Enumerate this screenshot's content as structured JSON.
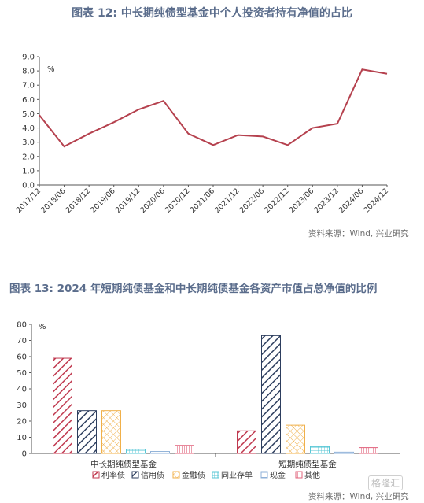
{
  "figure1": {
    "title": "图表 12: 中长期纯债型基金中个人投资者持有净值的占比",
    "source": "资料来源：Wind, 兴业研究"
  },
  "figure2": {
    "title": "图表 13: 2024 年短期纯债基金和中长期纯债基金各资产市值占总净值的比例",
    "source": "资料来源：Wind, 兴业研究"
  },
  "watermark": "格隆汇",
  "chart_data": [
    {
      "type": "line",
      "ylabel_unit": "%",
      "ylim": [
        0,
        9
      ],
      "yticks": [
        "0.0",
        "1.0",
        "2.0",
        "3.0",
        "4.0",
        "5.0",
        "6.0",
        "7.0",
        "8.0",
        "9.0"
      ],
      "x": [
        "2017/12",
        "2018/06",
        "2018/12",
        "2019/06",
        "2019/12",
        "2020/06",
        "2020/12",
        "2021/06",
        "2021/12",
        "2022/06",
        "2022/12",
        "2023/06",
        "2023/12",
        "2024/06",
        "2024/12"
      ],
      "series": [
        {
          "values": [
            4.9,
            2.7,
            3.6,
            4.4,
            5.3,
            5.9,
            3.6,
            2.8,
            3.5,
            3.4,
            2.8,
            4.0,
            4.3,
            8.1,
            7.8
          ],
          "color": "#b5414e"
        }
      ],
      "grid": false
    },
    {
      "type": "bar",
      "ylabel_unit": "%",
      "ylim": [
        0,
        80
      ],
      "yticks": [
        "0",
        "10",
        "20",
        "30",
        "40",
        "50",
        "60",
        "70",
        "80"
      ],
      "categories": [
        "中长期纯债型基金",
        "短期纯债型基金"
      ],
      "series": [
        {
          "name": "利率债",
          "values": [
            59,
            14
          ],
          "color": "#c0394f",
          "pattern": "diag-red"
        },
        {
          "name": "信用债",
          "values": [
            26.5,
            73
          ],
          "color": "#2d3e5e",
          "pattern": "diag-navy"
        },
        {
          "name": "金融债",
          "values": [
            26.5,
            17.5
          ],
          "color": "#f0b04a",
          "pattern": "cross-orange"
        },
        {
          "name": "同业存单",
          "values": [
            2.5,
            4.2
          ],
          "color": "#58c7d6",
          "pattern": "grid-cyan"
        },
        {
          "name": "现金",
          "values": [
            1.2,
            0.8
          ],
          "color": "#8fb1d8",
          "pattern": "hline-blue"
        },
        {
          "name": "其他",
          "values": [
            5,
            3.6
          ],
          "color": "#e0607a",
          "pattern": "vline-pink"
        }
      ],
      "legend": "bottom",
      "grid": false
    }
  ]
}
